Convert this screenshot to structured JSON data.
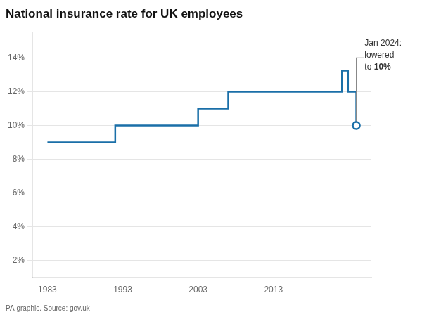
{
  "chart_data": {
    "type": "line",
    "title": "National insurance rate for UK employees",
    "source": "PA graphic. Source: gov.uk",
    "color": "#1a6fa8",
    "x": [
      1983,
      1992,
      1992,
      2003,
      2003,
      2007,
      2007,
      2011,
      2011,
      2022.1,
      2022.1,
      2022.9,
      2022.9,
      2024.0
    ],
    "values": [
      9,
      9,
      10,
      10,
      11,
      11,
      12,
      12,
      12,
      12,
      13.25,
      13.25,
      12,
      12
    ],
    "drop_line": {
      "x": [
        2024.0,
        2024.0
      ],
      "values": [
        12,
        10
      ]
    },
    "final_point": {
      "x": [
        2024.0
      ],
      "values": [
        10
      ],
      "marker": "circle"
    },
    "callout": {
      "x": [
        2024.0,
        2024.0,
        2025.0
      ],
      "values": [
        10.0,
        14.0,
        14.0
      ],
      "color": "#888888"
    },
    "annotation": {
      "lines": [
        "Jan 2024:",
        "lowered",
        "to 10%"
      ],
      "x": 2025.1,
      "y": 15.1
    },
    "xlim": [
      1981,
      2026
    ],
    "ylim": [
      1,
      15.5
    ],
    "xticks": [
      1983,
      1993,
      2003,
      2013
    ],
    "yticks": [
      {
        "value": 2,
        "label": "2%"
      },
      {
        "value": 4,
        "label": "4%"
      },
      {
        "value": 6,
        "label": "6%"
      },
      {
        "value": 8,
        "label": "8%"
      },
      {
        "value": 10,
        "label": "10%"
      },
      {
        "value": 12,
        "label": "12%"
      },
      {
        "value": 14,
        "label": "14%"
      }
    ],
    "grid": "y"
  }
}
